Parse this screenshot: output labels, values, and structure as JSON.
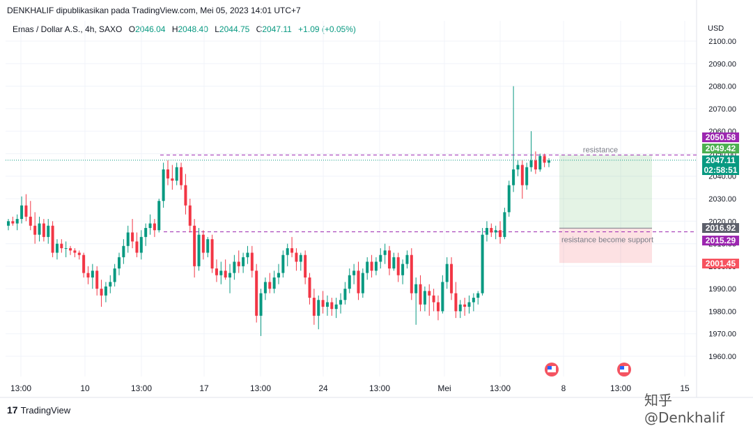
{
  "header": {
    "publisher_line": "DENKHALIF dipublikasikan pada TradingView.com, Mei 05, 2023 14:01 UTC+7"
  },
  "legend": {
    "symbol": "Emas / Dollar A.S., 4h, SAXO",
    "open_label": "O",
    "open": "2046.04",
    "high_label": "H",
    "high": "2048.40",
    "low_label": "L",
    "low": "2044.75",
    "close_label": "C",
    "close": "2047.11",
    "change": "+1.09 (+0.05%)"
  },
  "currency": "USD",
  "footer": {
    "brand": "TradingView",
    "brand_mark": "17",
    "watermark": "知乎 @Denkhalif"
  },
  "chart_data": {
    "type": "candlestick",
    "y_ticks": [
      "2100.00",
      "2090.00",
      "2080.00",
      "2070.00",
      "2060.00",
      "2050.00",
      "2040.00",
      "2030.00",
      "2020.00",
      "2010.00",
      "2000.00",
      "1990.00",
      "1980.00",
      "1970.00",
      "1960.00"
    ],
    "ylim": [
      1955,
      2105
    ],
    "x_ticks": [
      "13:00",
      "10",
      "13:00",
      "17",
      "13:00",
      "24",
      "13:00",
      "Mei",
      "13:00",
      "8",
      "13:00",
      "15"
    ],
    "price_tags": [
      {
        "label": "2050.58",
        "color": "#9c27b0"
      },
      {
        "label": "2049.42",
        "color": "#4caf50"
      },
      {
        "label": "2047.11",
        "sub": "02:58:51",
        "color": "#089981"
      },
      {
        "label": "2016.92",
        "color": "#5d606b"
      },
      {
        "label": "2015.29",
        "color": "#9c27b0"
      },
      {
        "label": "2001.45",
        "color": "#f7525f"
      }
    ],
    "annotations": [
      {
        "text": "resistance",
        "level": 2049.42
      },
      {
        "text": "resistance become support",
        "level": 2015.29
      }
    ],
    "position": {
      "entry": 2016.92,
      "target": 2049.42,
      "stop": 2001.45
    },
    "last_price": 2047.11,
    "colors": {
      "up": "#089981",
      "down": "#f23645",
      "level": "#9c27b0"
    },
    "candles": [
      [
        2018,
        2021,
        2016,
        2020
      ],
      [
        2020,
        2022,
        2018,
        2019
      ],
      [
        2019,
        2023,
        2016,
        2021
      ],
      [
        2021,
        2031,
        2019,
        2027
      ],
      [
        2027,
        2032,
        2020,
        2022
      ],
      [
        2022,
        2029,
        2016,
        2018
      ],
      [
        2018,
        2024,
        2010,
        2014
      ],
      [
        2014,
        2022,
        2011,
        2019
      ],
      [
        2019,
        2021,
        2011,
        2013
      ],
      [
        2013,
        2021,
        2010,
        2018
      ],
      [
        2018,
        2020,
        2004,
        2006
      ],
      [
        2006,
        2012,
        2003,
        2010
      ],
      [
        2010,
        2012,
        2006,
        2008
      ],
      [
        2008,
        2011,
        2004,
        2008
      ],
      [
        2008,
        2009,
        2005,
        2007
      ],
      [
        2007,
        2008,
        2004,
        2006
      ],
      [
        2006,
        2007,
        2003,
        2005
      ],
      [
        2005,
        2006,
        1995,
        1997
      ],
      [
        1997,
        2000,
        1992,
        1995
      ],
      [
        1995,
        2001,
        1990,
        1998
      ],
      [
        1998,
        2000,
        1987,
        1990
      ],
      [
        1990,
        1994,
        1982,
        1987
      ],
      [
        1987,
        1993,
        1984,
        1991
      ],
      [
        1991,
        1996,
        1988,
        1993
      ],
      [
        1993,
        2001,
        1991,
        1999
      ],
      [
        1999,
        2006,
        1996,
        2004
      ],
      [
        2004,
        2012,
        2001,
        2009
      ],
      [
        2009,
        2018,
        2006,
        2015
      ],
      [
        2015,
        2021,
        2008,
        2011
      ],
      [
        2011,
        2015,
        2004,
        2006
      ],
      [
        2006,
        2016,
        2003,
        2013
      ],
      [
        2013,
        2019,
        2009,
        2017
      ],
      [
        2017,
        2023,
        2014,
        2019
      ],
      [
        2019,
        2021,
        2013,
        2016
      ],
      [
        2016,
        2030,
        2015,
        2029
      ],
      [
        2029,
        2046,
        2026,
        2043
      ],
      [
        2043,
        2047,
        2036,
        2039
      ],
      [
        2039,
        2045,
        2034,
        2038
      ],
      [
        2038,
        2046,
        2036,
        2044
      ],
      [
        2044,
        2046,
        2034,
        2036
      ],
      [
        2036,
        2041,
        2023,
        2027
      ],
      [
        2027,
        2030,
        2015,
        2018
      ],
      [
        2018,
        2021,
        1995,
        2000
      ],
      [
        2000,
        2017,
        1998,
        2014
      ],
      [
        2014,
        2016,
        2003,
        2006
      ],
      [
        2006,
        2013,
        2004,
        2012
      ],
      [
        2012,
        2014,
        1997,
        1999
      ],
      [
        1999,
        2003,
        1993,
        1996
      ],
      [
        1996,
        2002,
        1992,
        1998
      ],
      [
        1998,
        2003,
        1994,
        1995
      ],
      [
        1995,
        2001,
        1988,
        1997
      ],
      [
        1997,
        2005,
        1994,
        2002
      ],
      [
        2002,
        2007,
        1997,
        2000
      ],
      [
        2000,
        2006,
        1997,
        2004
      ],
      [
        2004,
        2009,
        2001,
        2006
      ],
      [
        2006,
        2009,
        1995,
        1998
      ],
      [
        1998,
        2001,
        1975,
        1978
      ],
      [
        1978,
        1990,
        1969,
        1988
      ],
      [
        1988,
        1995,
        1985,
        1993
      ],
      [
        1993,
        1997,
        1988,
        1990
      ],
      [
        1990,
        1998,
        1988,
        1995
      ],
      [
        1995,
        2001,
        1992,
        1997
      ],
      [
        1997,
        2007,
        1995,
        2005
      ],
      [
        2005,
        2010,
        2000,
        2008
      ],
      [
        2008,
        2013,
        2004,
        2006
      ],
      [
        2006,
        2008,
        1998,
        2002
      ],
      [
        2002,
        2006,
        1998,
        2005
      ],
      [
        2005,
        2007,
        1992,
        1995
      ],
      [
        1995,
        1997,
        1983,
        1986
      ],
      [
        1986,
        1990,
        1974,
        1978
      ],
      [
        1978,
        1987,
        1972,
        1985
      ],
      [
        1985,
        1989,
        1979,
        1982
      ],
      [
        1982,
        1987,
        1978,
        1984
      ],
      [
        1984,
        1986,
        1978,
        1981
      ],
      [
        1981,
        1986,
        1977,
        1983
      ],
      [
        1983,
        1988,
        1979,
        1985
      ],
      [
        1985,
        1993,
        1983,
        1990
      ],
      [
        1990,
        1999,
        1988,
        1996
      ],
      [
        1996,
        2001,
        1992,
        1998
      ],
      [
        1998,
        2002,
        1985,
        1988
      ],
      [
        1988,
        1999,
        1986,
        1997
      ],
      [
        1997,
        2004,
        1994,
        2002
      ],
      [
        2002,
        2005,
        1995,
        1998
      ],
      [
        1998,
        2004,
        1996,
        2002
      ],
      [
        2002,
        2008,
        1999,
        2005
      ],
      [
        2005,
        2010,
        2001,
        2007
      ],
      [
        2007,
        2009,
        1996,
        1999
      ],
      [
        1999,
        2006,
        1998,
        2004
      ],
      [
        2004,
        2006,
        1993,
        1996
      ],
      [
        1996,
        2003,
        1992,
        2001
      ],
      [
        2001,
        2007,
        1999,
        2005
      ],
      [
        2005,
        2008,
        1985,
        1988
      ],
      [
        1988,
        1995,
        1974,
        1992
      ],
      [
        1992,
        1996,
        1980,
        1983
      ],
      [
        1983,
        1991,
        1980,
        1989
      ],
      [
        1989,
        1992,
        1978,
        1987
      ],
      [
        1987,
        1990,
        1980,
        1984
      ],
      [
        1984,
        1987,
        1976,
        1980
      ],
      [
        1980,
        1996,
        1979,
        1993
      ],
      [
        1993,
        2004,
        1990,
        2001
      ],
      [
        2001,
        2004,
        1985,
        1988
      ],
      [
        1988,
        1993,
        1977,
        1980
      ],
      [
        1980,
        1985,
        1977,
        1983
      ],
      [
        1983,
        1986,
        1978,
        1982
      ],
      [
        1982,
        1987,
        1979,
        1984
      ],
      [
        1984,
        1988,
        1980,
        1986
      ],
      [
        1986,
        1989,
        1983,
        1988
      ],
      [
        1988,
        2017,
        1987,
        2014
      ],
      [
        2014,
        2020,
        2011,
        2017
      ],
      [
        2017,
        2019,
        2013,
        2015
      ],
      [
        2015,
        2018,
        2012,
        2016
      ],
      [
        2016,
        2020,
        2010,
        2013
      ],
      [
        2013,
        2026,
        2012,
        2024
      ],
      [
        2024,
        2038,
        2022,
        2036
      ],
      [
        2036,
        2080,
        2033,
        2043
      ],
      [
        2043,
        2047,
        2040,
        2045
      ],
      [
        2045,
        2047,
        2030,
        2036
      ],
      [
        2036,
        2046,
        2034,
        2044
      ],
      [
        2044,
        2060,
        2042,
        2047
      ],
      [
        2047,
        2051,
        2041,
        2043
      ],
      [
        2043,
        2050,
        2042,
        2049
      ],
      [
        2049,
        2050,
        2044,
        2046
      ],
      [
        2046,
        2048,
        2044,
        2047
      ]
    ]
  }
}
